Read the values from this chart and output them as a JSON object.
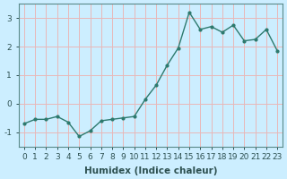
{
  "x": [
    0,
    1,
    2,
    3,
    4,
    5,
    6,
    7,
    8,
    9,
    10,
    11,
    12,
    13,
    14,
    15,
    16,
    17,
    18,
    19,
    20,
    21,
    22,
    23
  ],
  "y": [
    -0.7,
    -0.55,
    -0.55,
    -0.45,
    -0.65,
    -1.15,
    -0.95,
    -0.6,
    -0.55,
    -0.5,
    -0.45,
    0.15,
    0.65,
    1.35,
    1.95,
    3.2,
    2.6,
    2.7,
    2.5,
    2.75,
    2.2,
    2.25,
    2.6,
    1.85
  ],
  "line_color": "#2d7a6e",
  "marker": "o",
  "marker_size": 2.0,
  "bg_color": "#cceeff",
  "grid_color_h": "#e8b8b8",
  "grid_color_v": "#e8b8b8",
  "xlabel": "Humidex (Indice chaleur)",
  "ylim": [
    -1.5,
    3.5
  ],
  "xlim": [
    -0.5,
    23.5
  ],
  "yticks": [
    -1,
    0,
    1,
    2,
    3
  ],
  "xtick_labels": [
    "0",
    "1",
    "2",
    "3",
    "4",
    "5",
    "6",
    "7",
    "8",
    "9",
    "10",
    "11",
    "12",
    "13",
    "14",
    "15",
    "16",
    "17",
    "18",
    "19",
    "20",
    "21",
    "22",
    "23"
  ],
  "tick_fontsize": 6.5,
  "xlabel_fontsize": 7.5,
  "line_width": 1.0,
  "spine_color": "#5a8a8a",
  "tick_color": "#2d5050"
}
